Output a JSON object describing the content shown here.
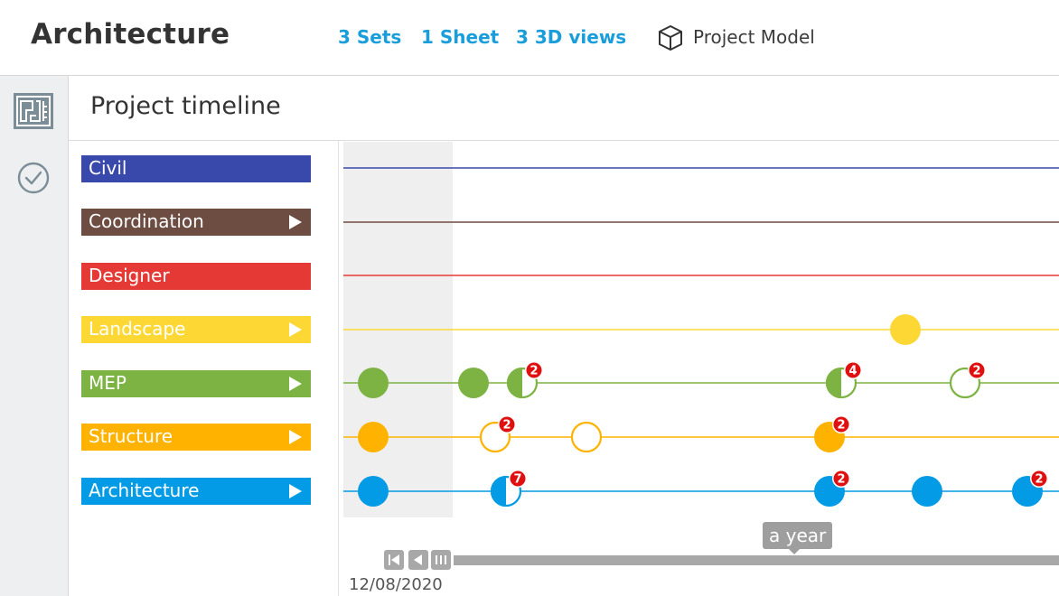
{
  "header": {
    "title": "Architecture",
    "links": [
      {
        "label": "3 Sets"
      },
      {
        "label": "1 Sheet"
      },
      {
        "label": "3 3D views"
      }
    ],
    "model": {
      "label": "Project Model",
      "icon": "cube-icon"
    }
  },
  "sidebar": {
    "items": [
      {
        "icon": "sheets-icon",
        "active": true
      },
      {
        "icon": "checkmark-circle-icon",
        "active": false
      }
    ]
  },
  "panel": {
    "title": "Project timeline"
  },
  "colors": {
    "accent": "#1a9edb",
    "badge": "#e01010"
  },
  "tracks": [
    {
      "name": "Civil",
      "color": "#3949ab",
      "expandable": false,
      "events": []
    },
    {
      "name": "Coordination",
      "color": "#6d4c41",
      "expandable": true,
      "events": []
    },
    {
      "name": "Designer",
      "color": "#e53935",
      "expandable": false,
      "events": []
    },
    {
      "name": "Landscape",
      "color": "#fdd835",
      "expandable": true,
      "events": [
        {
          "fill": "full",
          "badge": ""
        }
      ]
    },
    {
      "name": "MEP",
      "color": "#7cb342",
      "expandable": true,
      "events": [
        {
          "fill": "full",
          "badge": ""
        },
        {
          "fill": "full",
          "badge": ""
        },
        {
          "fill": "half",
          "badge": "2"
        },
        {
          "fill": "half",
          "badge": "4"
        },
        {
          "fill": "empty",
          "badge": "2"
        }
      ]
    },
    {
      "name": "Structure",
      "color": "#ffb300",
      "expandable": true,
      "events": [
        {
          "fill": "full",
          "badge": ""
        },
        {
          "fill": "empty",
          "badge": "2"
        },
        {
          "fill": "empty",
          "badge": ""
        },
        {
          "fill": "full",
          "badge": "2"
        }
      ]
    },
    {
      "name": "Architecture",
      "color": "#039be5",
      "expandable": true,
      "events": [
        {
          "fill": "full",
          "badge": ""
        },
        {
          "fill": "half",
          "badge": "7"
        },
        {
          "fill": "full",
          "badge": "2"
        },
        {
          "fill": "full",
          "badge": ""
        },
        {
          "fill": "full",
          "badge": "2"
        }
      ]
    }
  ],
  "scrubber": {
    "scale_label": "a year",
    "start_date": "12/08/2020",
    "controls": [
      "skip-to-start-icon",
      "step-back-icon",
      "range-handle-icon"
    ]
  }
}
